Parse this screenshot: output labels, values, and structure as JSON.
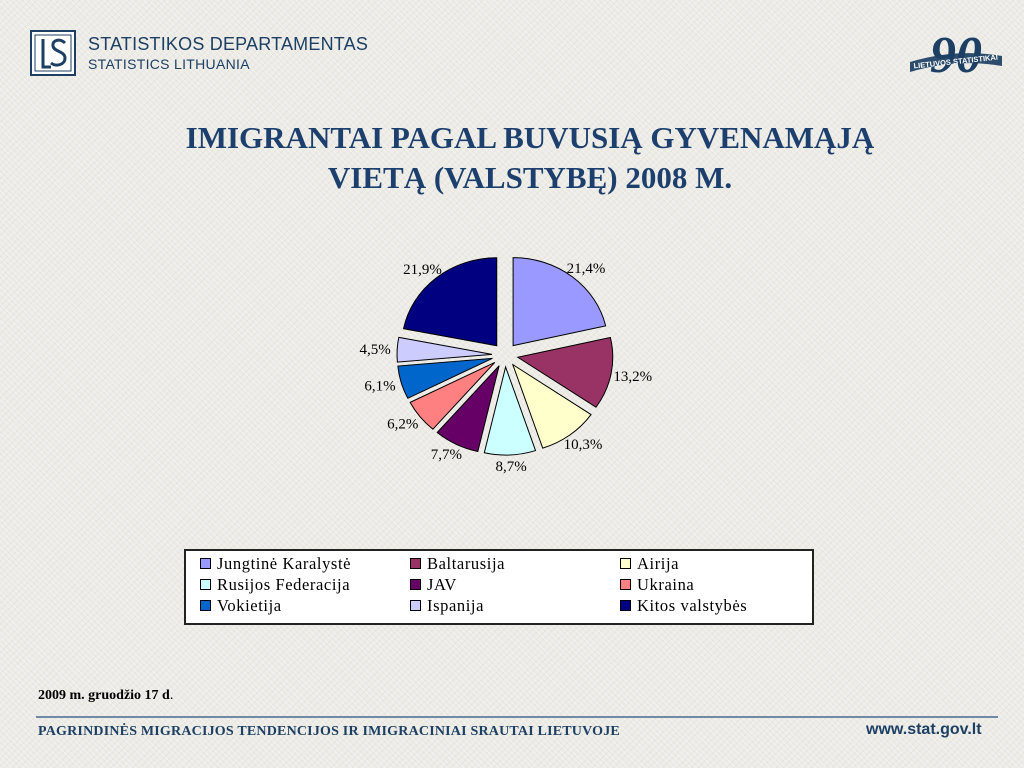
{
  "header": {
    "logo_line1": "STATISTIKOS DEPARTAMENTAS",
    "logo_line2": "STATISTICS LITHUANIA",
    "anniversary_number": "90",
    "anniversary_text": "LIETUVOS STATISTIKAI"
  },
  "colors": {
    "brand": "#1c3f63",
    "title": "#1c3f6e"
  },
  "chart_data": {
    "type": "pie",
    "title": [
      "IMIGRANTAI PAGAL BUVUSIĄ GYVENAMĄJĄ",
      "VIETĄ (VALSTYBĘ)  2008 M."
    ],
    "legend_position": "bottom",
    "categories": [
      "Jungtinė Karalystė",
      "Baltarusija",
      "Airija",
      "Rusijos Federacija",
      "JAV",
      "Ukraina",
      "Vokietija",
      "Ispanija",
      "Kitos valstybės"
    ],
    "values": [
      21.4,
      13.2,
      10.3,
      8.7,
      7.7,
      6.2,
      6.1,
      4.5,
      21.9
    ],
    "labels": [
      "21,4%",
      "13,2%",
      "10,3%",
      "8,7%",
      "7,7%",
      "6,2%",
      "6,1%",
      "4,5%",
      "21,9%"
    ],
    "colors": [
      "#9999ff",
      "#993366",
      "#ffffcc",
      "#ccffff",
      "#660066",
      "#ff8080",
      "#0066cc",
      "#ccccff",
      "#000080"
    ]
  },
  "footer": {
    "date_bold": "2009 m. gruodžio 17 d",
    "date_rest": ".",
    "title": "PAGRINDINĖS MIGRACIJOS TENDENCIJOS IR IMIGRACINIAI SRAUTAI LIETUVOJE",
    "url": "www.stat.gov.lt"
  }
}
